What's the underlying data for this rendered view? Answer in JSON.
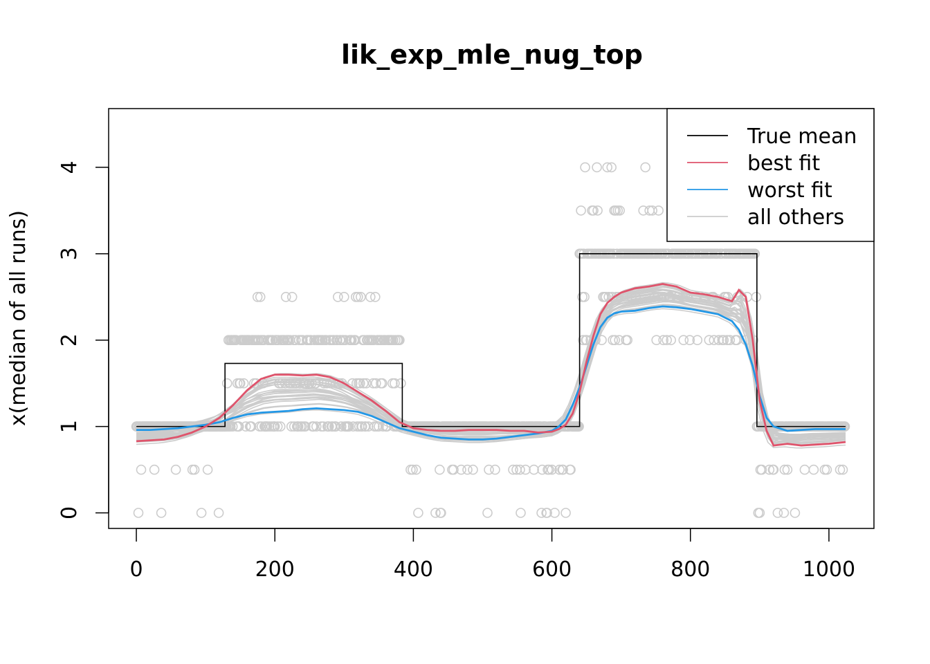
{
  "chart_data": {
    "type": "line",
    "title": "lik_exp_mle_nug_top",
    "xlabel": "",
    "ylabel": "x(median of all runs)",
    "xlim": [
      -40,
      1065
    ],
    "ylim": [
      -0.18,
      4.68
    ],
    "xticks": [
      0,
      200,
      400,
      600,
      800,
      1000
    ],
    "yticks": [
      0,
      1,
      2,
      3,
      4
    ],
    "grid": false,
    "legend": {
      "position": "top-right",
      "entries": [
        {
          "label": "True mean",
          "color": "#000000"
        },
        {
          "label": "best fit",
          "color": "#DF536B"
        },
        {
          "label": "worst fit",
          "color": "#2297E6"
        },
        {
          "label": "all others",
          "color": "#CCCCCC"
        }
      ]
    },
    "true_mean": {
      "color": "#000000",
      "segments": [
        {
          "x": [
            0,
            128
          ],
          "y": 1
        },
        {
          "x": [
            128,
            384
          ],
          "y": 1.73
        },
        {
          "x": [
            384,
            640
          ],
          "y": 1
        },
        {
          "x": [
            640,
            896
          ],
          "y": 3
        },
        {
          "x": [
            896,
            1024
          ],
          "y": 1
        }
      ]
    },
    "series": [
      {
        "name": "best fit",
        "color": "#DF536B",
        "x": [
          0,
          20,
          40,
          60,
          80,
          100,
          120,
          140,
          160,
          180,
          200,
          220,
          240,
          260,
          280,
          300,
          320,
          340,
          360,
          380,
          400,
          420,
          440,
          460,
          480,
          500,
          520,
          540,
          560,
          580,
          600,
          610,
          620,
          630,
          640,
          650,
          660,
          670,
          680,
          690,
          700,
          720,
          740,
          760,
          780,
          800,
          820,
          840,
          860,
          870,
          880,
          890,
          900,
          910,
          920,
          940,
          960,
          980,
          1000,
          1024
        ],
        "y": [
          0.83,
          0.84,
          0.85,
          0.88,
          0.93,
          1.0,
          1.1,
          1.25,
          1.42,
          1.55,
          1.6,
          1.6,
          1.59,
          1.6,
          1.57,
          1.5,
          1.4,
          1.3,
          1.18,
          1.05,
          0.98,
          0.96,
          0.95,
          0.95,
          0.96,
          0.96,
          0.96,
          0.95,
          0.95,
          0.93,
          0.94,
          0.97,
          1.02,
          1.15,
          1.4,
          1.75,
          2.05,
          2.3,
          2.43,
          2.5,
          2.55,
          2.6,
          2.62,
          2.65,
          2.62,
          2.55,
          2.53,
          2.5,
          2.45,
          2.58,
          2.5,
          2.0,
          1.3,
          0.95,
          0.78,
          0.8,
          0.78,
          0.79,
          0.8,
          0.82
        ]
      },
      {
        "name": "worst fit",
        "color": "#2297E6",
        "x": [
          0,
          20,
          40,
          60,
          80,
          100,
          120,
          140,
          160,
          180,
          200,
          220,
          240,
          260,
          280,
          300,
          320,
          340,
          360,
          380,
          400,
          420,
          440,
          460,
          480,
          500,
          520,
          540,
          560,
          580,
          600,
          610,
          620,
          630,
          640,
          650,
          660,
          670,
          680,
          690,
          700,
          720,
          740,
          760,
          780,
          800,
          820,
          840,
          860,
          870,
          880,
          890,
          900,
          910,
          920,
          940,
          960,
          980,
          1000,
          1024
        ],
        "y": [
          0.96,
          0.96,
          0.97,
          0.98,
          1.0,
          1.02,
          1.05,
          1.1,
          1.14,
          1.16,
          1.17,
          1.18,
          1.2,
          1.21,
          1.2,
          1.19,
          1.17,
          1.12,
          1.05,
          0.98,
          0.94,
          0.9,
          0.87,
          0.86,
          0.85,
          0.85,
          0.86,
          0.88,
          0.9,
          0.92,
          0.95,
          1.0,
          1.08,
          1.25,
          1.45,
          1.7,
          1.95,
          2.15,
          2.26,
          2.31,
          2.33,
          2.34,
          2.37,
          2.39,
          2.38,
          2.36,
          2.33,
          2.3,
          2.22,
          2.12,
          1.95,
          1.7,
          1.35,
          1.1,
          1.0,
          0.95,
          0.96,
          0.97,
          0.97,
          0.97
        ]
      }
    ],
    "others": {
      "name": "all others",
      "color": "#CCCCCC",
      "count": 30
    },
    "observations": {
      "color": "#CCCCCC",
      "marker": "open-circle",
      "n": 1024
    }
  }
}
